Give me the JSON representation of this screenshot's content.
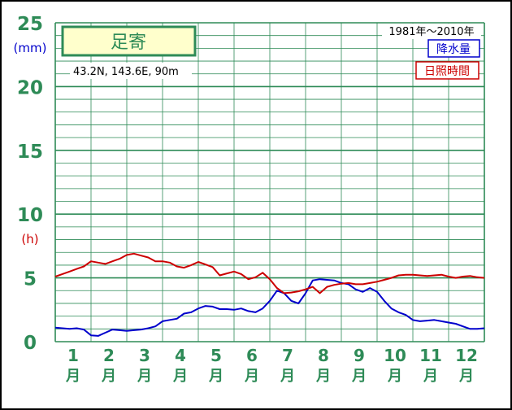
{
  "station": {
    "name": "足寄",
    "coords": "43.2N,  143.6E,  90m"
  },
  "period": "1981年～2010年",
  "units": {
    "precip": "(mm)",
    "sunshine": "(h)"
  },
  "legend": [
    {
      "label": "降水量",
      "color": "#0000cc"
    },
    {
      "label": "日照時間",
      "color": "#cc0000"
    }
  ],
  "colors": {
    "grid": "#2e8b57",
    "label_green": "#2e8b57",
    "label_red": "#cc0000",
    "label_blue": "#0000cc",
    "station_box_fill": "#ffffcc"
  },
  "chart_data": {
    "type": "line",
    "y_ticks": [
      {
        "value": 0,
        "label": "0"
      },
      {
        "value": 5,
        "label": "5"
      },
      {
        "value": 10,
        "label": "10"
      },
      {
        "value": 15,
        "label": "15"
      },
      {
        "value": 20,
        "label": "20"
      },
      {
        "value": 25,
        "label": "25"
      }
    ],
    "ylim": [
      0,
      25
    ],
    "xlim": [
      0.5,
      12.5
    ],
    "months": [
      {
        "num": "1",
        "unit": "月"
      },
      {
        "num": "2",
        "unit": "月"
      },
      {
        "num": "3",
        "unit": "月"
      },
      {
        "num": "4",
        "unit": "月"
      },
      {
        "num": "5",
        "unit": "月"
      },
      {
        "num": "6",
        "unit": "月"
      },
      {
        "num": "7",
        "unit": "月"
      },
      {
        "num": "8",
        "unit": "月"
      },
      {
        "num": "9",
        "unit": "月"
      },
      {
        "num": "10",
        "unit": "月"
      },
      {
        "num": "11",
        "unit": "月"
      },
      {
        "num": "12",
        "unit": "月"
      }
    ],
    "grid": true,
    "series": [
      {
        "name": "降水量",
        "color": "#0000cc",
        "x": [
          0.5,
          0.7,
          0.9,
          1.1,
          1.3,
          1.5,
          1.7,
          1.9,
          2.1,
          2.3,
          2.5,
          2.7,
          2.9,
          3.1,
          3.3,
          3.5,
          3.7,
          3.9,
          4.1,
          4.3,
          4.5,
          4.7,
          4.9,
          5.1,
          5.3,
          5.5,
          5.7,
          5.9,
          6.1,
          6.3,
          6.5,
          6.7,
          6.9,
          7.1,
          7.3,
          7.5,
          7.7,
          7.9,
          8.1,
          8.3,
          8.5,
          8.7,
          8.9,
          9.1,
          9.3,
          9.5,
          9.7,
          9.9,
          10.1,
          10.3,
          10.5,
          10.7,
          10.9,
          11.1,
          11.3,
          11.5,
          11.7,
          11.9,
          12.1,
          12.3,
          12.5
        ],
        "values": [
          1.1,
          1.05,
          1.0,
          1.05,
          0.95,
          0.5,
          0.45,
          0.7,
          0.95,
          0.9,
          0.85,
          0.9,
          0.95,
          1.05,
          1.2,
          1.6,
          1.7,
          1.8,
          2.2,
          2.3,
          2.6,
          2.8,
          2.75,
          2.55,
          2.55,
          2.5,
          2.6,
          2.4,
          2.3,
          2.6,
          3.2,
          4.0,
          3.8,
          3.2,
          3.0,
          3.8,
          4.8,
          4.9,
          4.85,
          4.8,
          4.6,
          4.5,
          4.1,
          3.9,
          4.2,
          3.9,
          3.2,
          2.6,
          2.3,
          2.1,
          1.7,
          1.6,
          1.65,
          1.7,
          1.6,
          1.5,
          1.4,
          1.2,
          1.0,
          1.0,
          1.05
        ]
      },
      {
        "name": "日照時間",
        "color": "#cc0000",
        "x": [
          0.5,
          0.7,
          0.9,
          1.1,
          1.3,
          1.5,
          1.7,
          1.9,
          2.1,
          2.3,
          2.5,
          2.7,
          2.9,
          3.1,
          3.3,
          3.5,
          3.7,
          3.9,
          4.1,
          4.3,
          4.5,
          4.7,
          4.9,
          5.1,
          5.3,
          5.5,
          5.7,
          5.9,
          6.1,
          6.3,
          6.5,
          6.7,
          6.9,
          7.1,
          7.3,
          7.5,
          7.7,
          7.9,
          8.1,
          8.3,
          8.5,
          8.7,
          8.9,
          9.1,
          9.3,
          9.5,
          9.7,
          9.9,
          10.1,
          10.3,
          10.5,
          10.7,
          10.9,
          11.1,
          11.3,
          11.5,
          11.7,
          11.9,
          12.1,
          12.3,
          12.5
        ],
        "values": [
          5.1,
          5.3,
          5.5,
          5.7,
          5.9,
          6.3,
          6.2,
          6.1,
          6.3,
          6.5,
          6.8,
          6.9,
          6.75,
          6.6,
          6.3,
          6.3,
          6.2,
          5.9,
          5.8,
          6.0,
          6.25,
          6.05,
          5.85,
          5.2,
          5.35,
          5.5,
          5.3,
          4.9,
          5.05,
          5.4,
          4.9,
          4.2,
          3.8,
          3.85,
          3.95,
          4.1,
          4.3,
          3.8,
          4.3,
          4.45,
          4.55,
          4.6,
          4.5,
          4.5,
          4.6,
          4.7,
          4.85,
          5.0,
          5.2,
          5.25,
          5.25,
          5.2,
          5.15,
          5.2,
          5.25,
          5.1,
          5.0,
          5.1,
          5.15,
          5.05,
          5.0
        ]
      }
    ]
  }
}
